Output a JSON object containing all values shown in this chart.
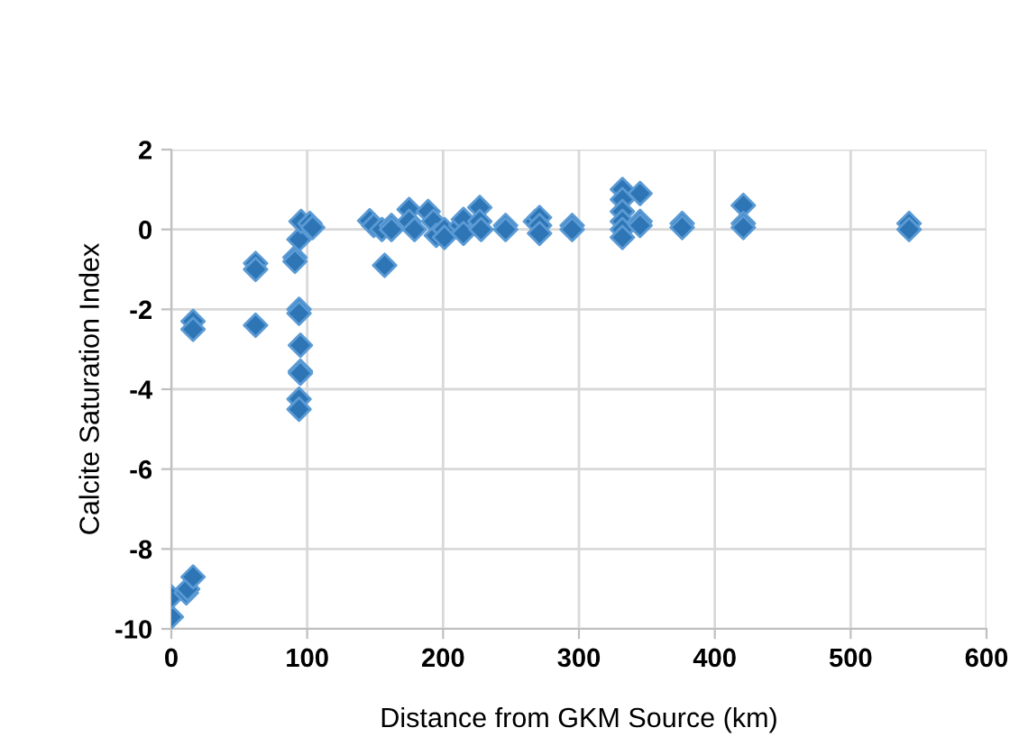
{
  "chart_data": {
    "type": "scatter",
    "xlabel": "Distance from GKM Source (km)",
    "ylabel": "Calcite Saturation Index",
    "xlim": [
      0,
      600
    ],
    "xticks": [
      0,
      100,
      200,
      300,
      400,
      500,
      600
    ],
    "ylim": [
      -10,
      2
    ],
    "yticks": [
      -10,
      -8,
      -6,
      -4,
      -2,
      0,
      2
    ],
    "grid": true,
    "legend": false,
    "marker": "diamond",
    "series": [
      {
        "color": "#2e75b6",
        "x": [
          0,
          0,
          11,
          12,
          16,
          16,
          16,
          62,
          62,
          62,
          91,
          91,
          94,
          95.5,
          102,
          104,
          94,
          94,
          95,
          95,
          95,
          94,
          94,
          146,
          149,
          155,
          162,
          162,
          157,
          175,
          175,
          179,
          189,
          193,
          195,
          201,
          201,
          213,
          215,
          215,
          227,
          227,
          228,
          246,
          246,
          268,
          271,
          271,
          271,
          295,
          295,
          332,
          332,
          332,
          332,
          332,
          332,
          345,
          345,
          345,
          376,
          376,
          421,
          421,
          421,
          543,
          543
        ],
        "values": [
          -9.7,
          -9.2,
          -9.1,
          -9.0,
          -8.7,
          -2.3,
          -2.5,
          -0.85,
          -1.0,
          -2.4,
          -0.7,
          -0.8,
          -0.25,
          0.2,
          0.15,
          0.05,
          -2.0,
          -2.1,
          -2.9,
          -3.55,
          -3.6,
          -4.25,
          -4.5,
          0.22,
          0.1,
          0,
          0.1,
          0,
          -0.9,
          0.5,
          0.2,
          0,
          0.45,
          0.2,
          -0.15,
          0,
          -0.2,
          0.1,
          0.25,
          -0.1,
          0.55,
          0.2,
          0,
          0.1,
          0,
          0.2,
          0.3,
          0.1,
          -0.1,
          0.1,
          0,
          1.0,
          0.75,
          0.45,
          0.2,
          0,
          -0.2,
          0.9,
          0.2,
          0.1,
          0.15,
          0.05,
          0.6,
          0.15,
          0.05,
          0.15,
          0
        ]
      }
    ]
  }
}
